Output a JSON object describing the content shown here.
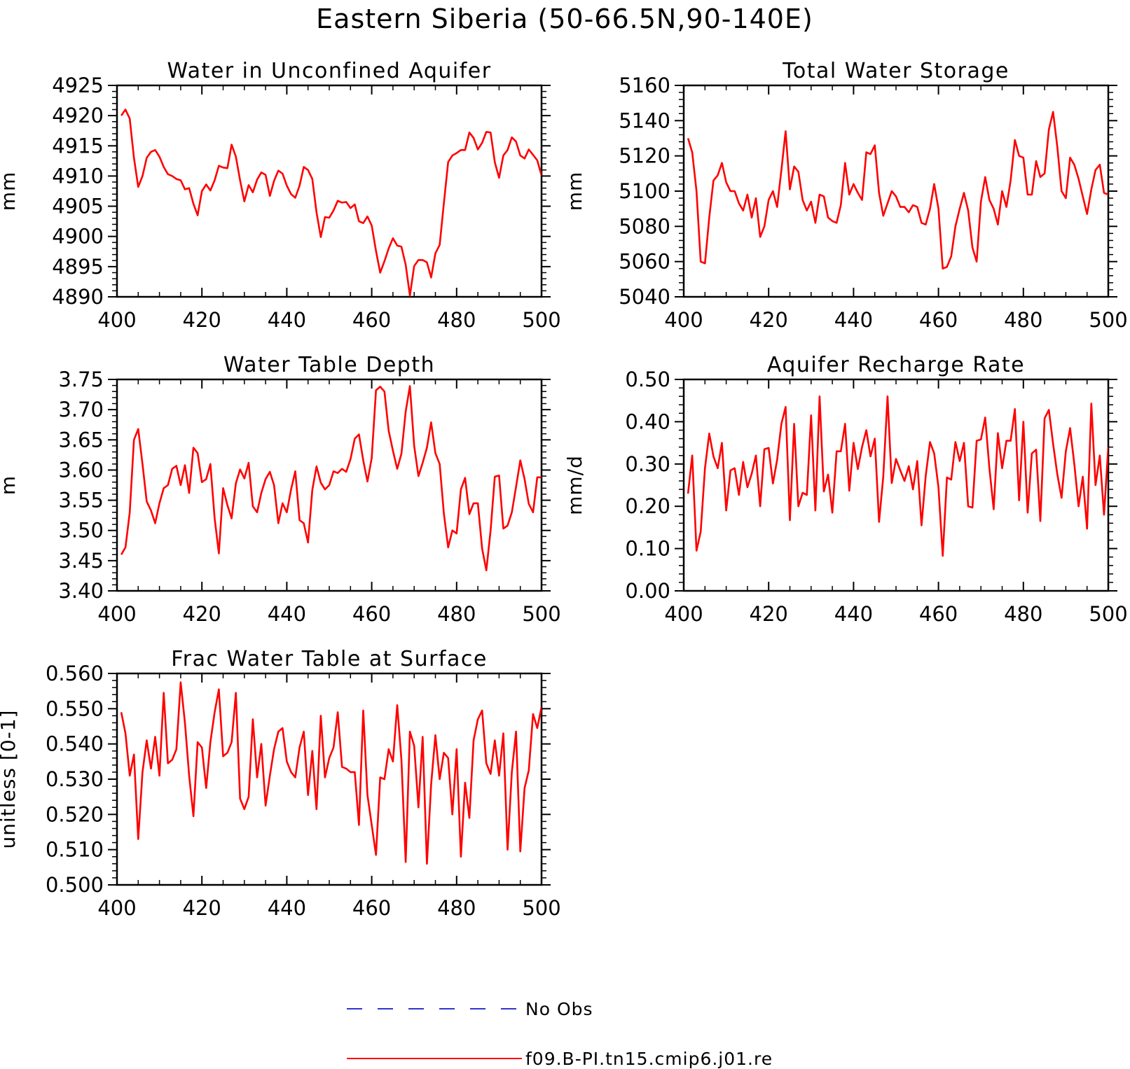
{
  "figure": {
    "title": "Eastern Siberia (50-66.5N,90-140E)"
  },
  "legend": [
    {
      "label": "No Obs",
      "color": "#3333cc",
      "dash": true
    },
    {
      "label": "f09.B-PI.tn15.cmip6.j01.re",
      "color": "#ff0000",
      "dash": false
    }
  ],
  "chart_data": [
    {
      "type": "line",
      "title": "Water in Unconfined Aquifer",
      "ylabel": "mm",
      "xlim": [
        400,
        500
      ],
      "ylim": [
        4890,
        4925
      ],
      "xticks": [
        400,
        420,
        440,
        460,
        480,
        500
      ],
      "yticks": [
        4890,
        4895,
        4900,
        4905,
        4910,
        4915,
        4920,
        4925
      ],
      "ytick_labels": [
        "4890",
        "4895",
        "4900",
        "4905",
        "4910",
        "4915",
        "4920",
        "4925"
      ],
      "series": [
        {
          "name": "f09.B-PI.tn15.cmip6.j01.re",
          "color": "#ff0000",
          "x_start": 401,
          "values": [
            4920,
            4921,
            4919.5,
            4913,
            4908.2,
            4910,
            4913,
            4914,
            4914.3,
            4913.2,
            4911.5,
            4910.3,
            4910,
            4909.5,
            4909.3,
            4907.8,
            4908,
            4905.4,
            4903.5,
            4907.5,
            4908.6,
            4907.6,
            4909.3,
            4911.7,
            4911.4,
            4911.3,
            4915.2,
            4913.2,
            4909.3,
            4905.8,
            4908.5,
            4907.3,
            4909.4,
            4910.6,
            4910.2,
            4906.7,
            4909.2,
            4910.9,
            4910.4,
            4908.4,
            4907,
            4906.4,
            4908.4,
            4911.5,
            4911,
            4909.5,
            4904,
            4899.9,
            4903.2,
            4903.1,
            4904.3,
            4905.9,
            4905.6,
            4905.7,
            4904.7,
            4905.3,
            4902.5,
            4902.2,
            4903.3,
            4901.8,
            4897.6,
            4894,
            4895.9,
            4898,
            4899.7,
            4898.5,
            4898.3,
            4895.3,
            4890.2,
            4895.1,
            4896.1,
            4896.1,
            4895.7,
            4893.2,
            4897.2,
            4898.6,
            4905.5,
            4912.3,
            4913.4,
            4913.8,
            4914.3,
            4914.3,
            4917.2,
            4916.3,
            4914.4,
            4915.5,
            4917.3,
            4917.2,
            4912.3,
            4909.7,
            4913.4,
            4914.3,
            4916.4,
            4915.7,
            4913.4,
            4912.9,
            4914.4,
            4913.5,
            4912.6,
            4910.1
          ]
        }
      ]
    },
    {
      "type": "line",
      "title": "Total Water Storage",
      "ylabel": "mm",
      "xlim": [
        400,
        500
      ],
      "ylim": [
        5040,
        5160
      ],
      "xticks": [
        400,
        420,
        440,
        460,
        480,
        500
      ],
      "yticks": [
        5040,
        5060,
        5080,
        5100,
        5120,
        5140,
        5160
      ],
      "ytick_labels": [
        "5040",
        "5060",
        "5080",
        "5100",
        "5120",
        "5140",
        "5160"
      ],
      "series": [
        {
          "name": "f09.B-PI.tn15.cmip6.j01.re",
          "color": "#ff0000",
          "x_start": 401,
          "values": [
            5130,
            5122,
            5100,
            5060,
            5059,
            5085,
            5106,
            5109,
            5116,
            5105,
            5100,
            5100,
            5093,
            5089,
            5098,
            5085,
            5096,
            5074,
            5080,
            5095,
            5100,
            5091,
            5112,
            5134,
            5101,
            5114,
            5111,
            5095,
            5089,
            5094,
            5082,
            5098,
            5097,
            5085,
            5083,
            5082,
            5092,
            5116,
            5098,
            5104,
            5099,
            5095,
            5122,
            5121,
            5126,
            5099,
            5086,
            5093,
            5100,
            5097,
            5091,
            5091,
            5088,
            5092,
            5091,
            5082,
            5081,
            5090,
            5104,
            5090,
            5056,
            5057,
            5063,
            5080,
            5090,
            5099,
            5089,
            5068,
            5060,
            5094,
            5108,
            5095,
            5090,
            5081,
            5100,
            5091,
            5106,
            5129,
            5120,
            5119,
            5098,
            5098,
            5117,
            5108,
            5110,
            5135,
            5145,
            5125,
            5100,
            5096,
            5119,
            5115,
            5107,
            5097,
            5087,
            5101,
            5112,
            5115,
            5099,
            5098
          ]
        }
      ]
    },
    {
      "type": "line",
      "title": "Water Table Depth",
      "ylabel": "m",
      "xlim": [
        400,
        500
      ],
      "ylim": [
        3.4,
        3.75
      ],
      "xticks": [
        400,
        420,
        440,
        460,
        480,
        500
      ],
      "yticks": [
        3.4,
        3.45,
        3.5,
        3.55,
        3.6,
        3.65,
        3.7,
        3.75
      ],
      "ytick_labels": [
        "3.40",
        "3.45",
        "3.50",
        "3.55",
        "3.60",
        "3.65",
        "3.70",
        "3.75"
      ],
      "series": [
        {
          "name": "f09.B-PI.tn15.cmip6.j01.re",
          "color": "#ff0000",
          "x_start": 401,
          "values": [
            3.46,
            3.472,
            3.53,
            3.65,
            3.668,
            3.61,
            3.548,
            3.533,
            3.512,
            3.545,
            3.57,
            3.575,
            3.602,
            3.607,
            3.575,
            3.608,
            3.562,
            3.637,
            3.628,
            3.58,
            3.585,
            3.61,
            3.52,
            3.462,
            3.57,
            3.542,
            3.52,
            3.578,
            3.601,
            3.586,
            3.612,
            3.54,
            3.53,
            3.562,
            3.585,
            3.597,
            3.575,
            3.512,
            3.545,
            3.53,
            3.568,
            3.598,
            3.517,
            3.512,
            3.48,
            3.567,
            3.606,
            3.579,
            3.568,
            3.575,
            3.598,
            3.595,
            3.602,
            3.597,
            3.618,
            3.652,
            3.659,
            3.616,
            3.581,
            3.62,
            3.732,
            3.738,
            3.73,
            3.665,
            3.632,
            3.602,
            3.627,
            3.697,
            3.739,
            3.64,
            3.59,
            3.612,
            3.637,
            3.679,
            3.628,
            3.61,
            3.528,
            3.472,
            3.5,
            3.495,
            3.568,
            3.587,
            3.527,
            3.545,
            3.545,
            3.47,
            3.434,
            3.5,
            3.589,
            3.591,
            3.503,
            3.508,
            3.53,
            3.572,
            3.616,
            3.585,
            3.544,
            3.53,
            3.588,
            3.588
          ]
        }
      ]
    },
    {
      "type": "line",
      "title": "Aquifer Recharge Rate",
      "ylabel": "mm/d",
      "xlim": [
        400,
        500
      ],
      "ylim": [
        0.0,
        0.5
      ],
      "xticks": [
        400,
        420,
        440,
        460,
        480,
        500
      ],
      "yticks": [
        0.0,
        0.1,
        0.2,
        0.3,
        0.4,
        0.5
      ],
      "ytick_labels": [
        "0.00",
        "0.10",
        "0.20",
        "0.30",
        "0.40",
        "0.50"
      ],
      "series": [
        {
          "name": "f09.B-PI.tn15.cmip6.j01.re",
          "color": "#ff0000",
          "x_start": 401,
          "values": [
            0.23,
            0.32,
            0.095,
            0.14,
            0.29,
            0.372,
            0.318,
            0.29,
            0.35,
            0.19,
            0.285,
            0.29,
            0.227,
            0.305,
            0.245,
            0.277,
            0.32,
            0.2,
            0.335,
            0.338,
            0.254,
            0.31,
            0.395,
            0.435,
            0.167,
            0.395,
            0.2,
            0.232,
            0.227,
            0.415,
            0.19,
            0.46,
            0.235,
            0.275,
            0.185,
            0.33,
            0.33,
            0.395,
            0.237,
            0.35,
            0.288,
            0.34,
            0.38,
            0.318,
            0.36,
            0.163,
            0.27,
            0.46,
            0.255,
            0.312,
            0.285,
            0.26,
            0.295,
            0.24,
            0.307,
            0.155,
            0.272,
            0.352,
            0.325,
            0.245,
            0.083,
            0.268,
            0.263,
            0.352,
            0.307,
            0.35,
            0.2,
            0.197,
            0.355,
            0.358,
            0.41,
            0.29,
            0.193,
            0.373,
            0.29,
            0.355,
            0.355,
            0.43,
            0.214,
            0.4,
            0.185,
            0.325,
            0.334,
            0.165,
            0.408,
            0.428,
            0.348,
            0.275,
            0.22,
            0.33,
            0.385,
            0.3,
            0.2,
            0.27,
            0.147,
            0.443,
            0.25,
            0.32,
            0.18,
            0.34
          ]
        }
      ]
    },
    {
      "type": "line",
      "title": "Frac Water Table at Surface",
      "ylabel": "unitless [0-1]",
      "xlim": [
        400,
        500
      ],
      "ylim": [
        0.5,
        0.56
      ],
      "xticks": [
        400,
        420,
        440,
        460,
        480,
        500
      ],
      "yticks": [
        0.5,
        0.51,
        0.52,
        0.53,
        0.54,
        0.55,
        0.56
      ],
      "ytick_labels": [
        "0.500",
        "0.510",
        "0.520",
        "0.530",
        "0.540",
        "0.550",
        "0.560"
      ],
      "series": [
        {
          "name": "f09.B-PI.tn15.cmip6.j01.re",
          "color": "#ff0000",
          "x_start": 401,
          "values": [
            0.549,
            0.543,
            0.531,
            0.537,
            0.513,
            0.532,
            0.541,
            0.533,
            0.542,
            0.531,
            0.5545,
            0.5345,
            0.5355,
            0.5385,
            0.5575,
            0.546,
            0.531,
            0.5195,
            0.5405,
            0.539,
            0.5275,
            0.5405,
            0.549,
            0.5555,
            0.5365,
            0.5375,
            0.5405,
            0.5545,
            0.5245,
            0.5215,
            0.525,
            0.547,
            0.5305,
            0.54,
            0.5225,
            0.531,
            0.5385,
            0.5435,
            0.5445,
            0.535,
            0.532,
            0.5305,
            0.539,
            0.5435,
            0.5255,
            0.538,
            0.5215,
            0.548,
            0.5305,
            0.536,
            0.539,
            0.549,
            0.5335,
            0.533,
            0.532,
            0.532,
            0.517,
            0.5495,
            0.5255,
            0.517,
            0.5085,
            0.5305,
            0.53,
            0.5385,
            0.535,
            0.551,
            0.5355,
            0.5065,
            0.5435,
            0.5395,
            0.522,
            0.542,
            0.506,
            0.5285,
            0.5425,
            0.53,
            0.5375,
            0.536,
            0.52,
            0.5385,
            0.508,
            0.529,
            0.519,
            0.541,
            0.547,
            0.5495,
            0.5345,
            0.5315,
            0.541,
            0.531,
            0.543,
            0.51,
            0.532,
            0.5435,
            0.5095,
            0.5275,
            0.5325,
            0.5485,
            0.5445,
            0.5505
          ]
        }
      ]
    }
  ]
}
